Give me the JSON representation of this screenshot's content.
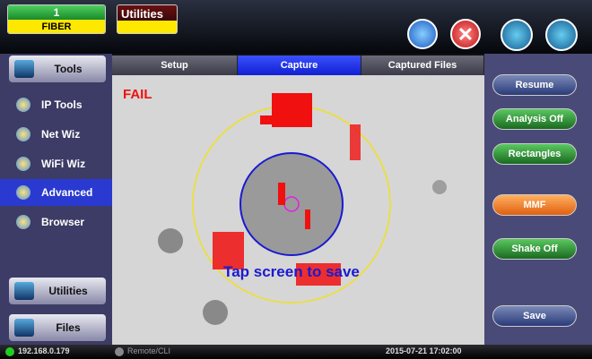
{
  "header": {
    "status": {
      "number": "1",
      "label": "FIBER"
    },
    "app_title": "Utilities"
  },
  "sidebar": {
    "items": [
      "Tools",
      "IP Tools",
      "Net Wiz",
      "WiFi Wiz",
      "Advanced",
      "Browser"
    ],
    "bottom_buttons": [
      "Utilities",
      "Files"
    ]
  },
  "tabs": [
    "Setup",
    "Capture",
    "Captured Files"
  ],
  "view": {
    "result": "FAIL",
    "hint": "Tap screen to save"
  },
  "actions": [
    "Resume",
    "Analysis Off",
    "Rectangles",
    "MMF",
    "Shake Off",
    "Save"
  ],
  "footer": {
    "ip": "192.168.0.179",
    "remote": "Remote/CLI",
    "datetime": "2015-07-21 17:02:00"
  }
}
